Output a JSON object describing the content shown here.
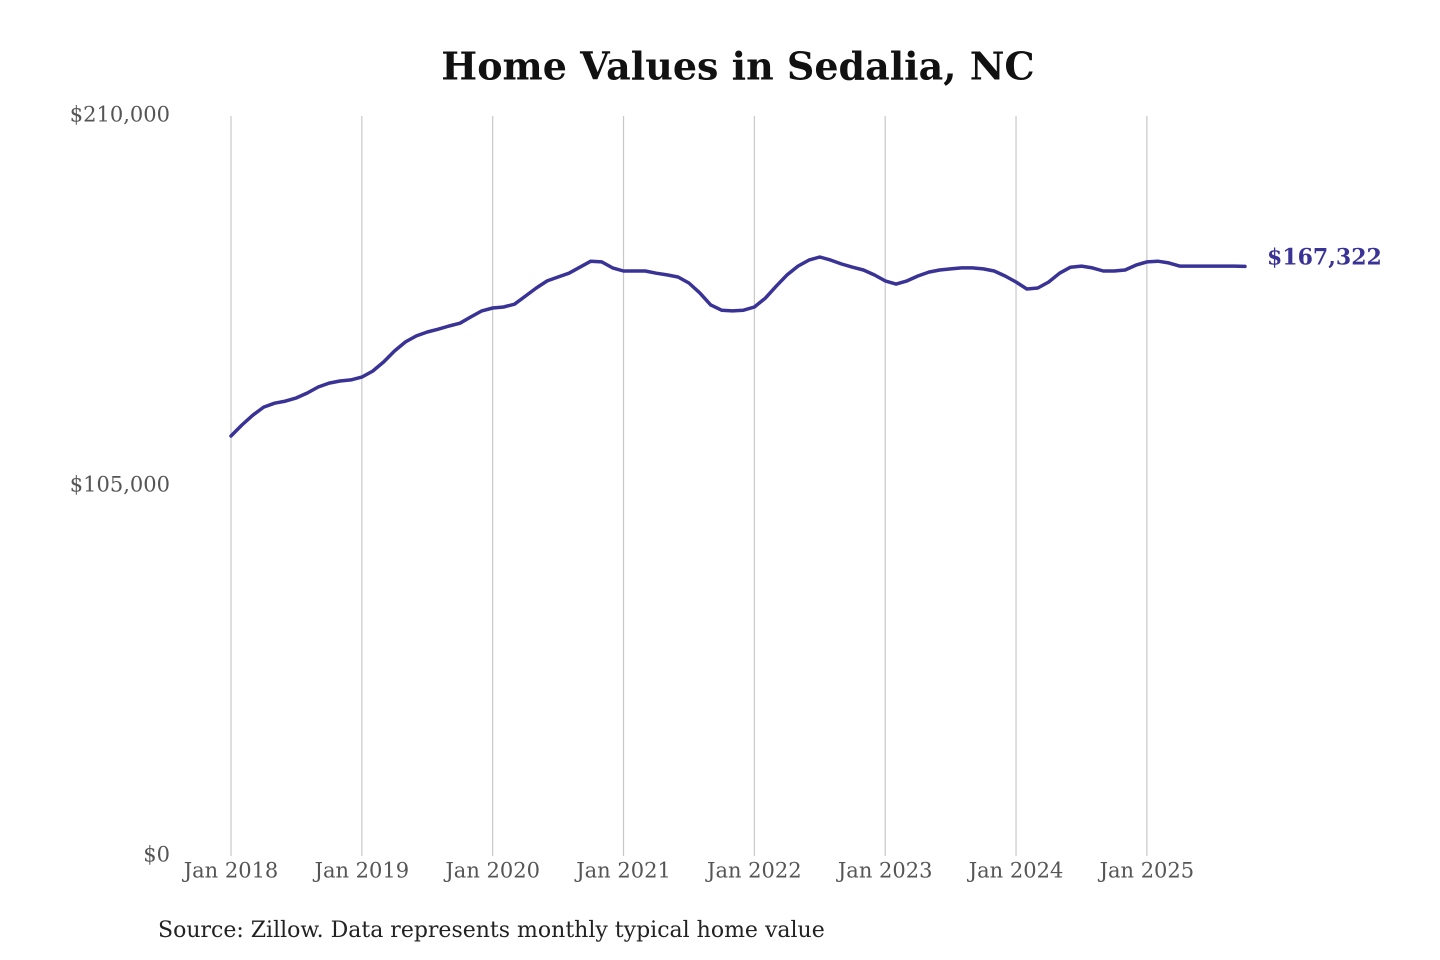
{
  "chart_data": {
    "type": "line",
    "title": "Home Values in Sedalia, NC",
    "source": "Source: Zillow. Data represents monthly typical home value",
    "x": [
      "2018-01",
      "2018-02",
      "2018-03",
      "2018-04",
      "2018-05",
      "2018-06",
      "2018-07",
      "2018-08",
      "2018-09",
      "2018-10",
      "2018-11",
      "2018-12",
      "2019-01",
      "2019-02",
      "2019-03",
      "2019-04",
      "2019-05",
      "2019-06",
      "2019-07",
      "2019-08",
      "2019-09",
      "2019-10",
      "2019-11",
      "2019-12",
      "2020-01",
      "2020-02",
      "2020-03",
      "2020-04",
      "2020-05",
      "2020-06",
      "2020-07",
      "2020-08",
      "2020-09",
      "2020-10",
      "2020-11",
      "2020-12",
      "2021-01",
      "2021-02",
      "2021-03",
      "2021-04",
      "2021-05",
      "2021-06",
      "2021-07",
      "2021-08",
      "2021-09",
      "2021-10",
      "2021-11",
      "2021-12",
      "2022-01",
      "2022-02",
      "2022-03",
      "2022-04",
      "2022-05",
      "2022-06",
      "2022-07",
      "2022-08",
      "2022-09",
      "2022-10",
      "2022-11",
      "2022-12",
      "2023-01",
      "2023-02",
      "2023-03",
      "2023-04",
      "2023-05",
      "2023-06",
      "2023-07",
      "2023-08",
      "2023-09",
      "2023-10",
      "2023-11",
      "2023-12",
      "2024-01",
      "2024-02",
      "2024-03",
      "2024-04",
      "2024-05",
      "2024-06",
      "2024-07",
      "2024-08",
      "2024-09",
      "2024-10",
      "2024-11",
      "2024-12",
      "2025-01",
      "2025-02",
      "2025-03",
      "2025-04",
      "2025-05",
      "2025-06",
      "2025-07",
      "2025-08",
      "2025-09",
      "2025-10"
    ],
    "series": [
      {
        "color": "#3a3396",
        "values": [
          119200,
          122300,
          125100,
          127400,
          128500,
          129100,
          130000,
          131400,
          133100,
          134200,
          134800,
          135100,
          135900,
          137600,
          140200,
          143300,
          145900,
          147600,
          148700,
          149500,
          150400,
          151200,
          153000,
          154700,
          155500,
          155800,
          156600,
          158900,
          161200,
          163200,
          164300,
          165400,
          167100,
          168800,
          168600,
          166900,
          166000,
          166000,
          166000,
          165400,
          164900,
          164300,
          162600,
          159800,
          156400,
          154900,
          154700,
          154900,
          155800,
          158300,
          161700,
          164900,
          167400,
          169100,
          170000,
          169100,
          168000,
          167100,
          166300,
          164900,
          163200,
          162300,
          163200,
          164600,
          165700,
          166300,
          166600,
          166900,
          166900,
          166600,
          166000,
          164600,
          162900,
          160900,
          161200,
          162900,
          165400,
          167100,
          167400,
          166900,
          166000,
          166000,
          166300,
          167700,
          168600,
          168800,
          168300,
          167400,
          167400,
          167400,
          167400,
          167400,
          167400,
          167322
        ],
        "value_labels": [
          null,
          null,
          null,
          null,
          null,
          null,
          null,
          null,
          null,
          null,
          null,
          null,
          null,
          null,
          null,
          null,
          null,
          null,
          null,
          null,
          null,
          null,
          null,
          null,
          null,
          null,
          null,
          null,
          null,
          null,
          null,
          null,
          null,
          null,
          null,
          null,
          null,
          null,
          null,
          null,
          null,
          null,
          null,
          null,
          null,
          null,
          null,
          null,
          null,
          null,
          null,
          null,
          null,
          null,
          null,
          null,
          null,
          null,
          null,
          null,
          null,
          null,
          null,
          null,
          null,
          null,
          null,
          null,
          null,
          null,
          null,
          null,
          null,
          null,
          null,
          null,
          null,
          null,
          null,
          null,
          null,
          null,
          null,
          null,
          null,
          null,
          null,
          null,
          null,
          null,
          null,
          null,
          null,
          "$167,322"
        ]
      }
    ],
    "xlim": [
      "2018-01",
      "2025-10"
    ],
    "xticks": [
      {
        "value": "2018-01",
        "label": "Jan 2018"
      },
      {
        "value": "2019-01",
        "label": "Jan 2019"
      },
      {
        "value": "2020-01",
        "label": "Jan 2020"
      },
      {
        "value": "2021-01",
        "label": "Jan 2021"
      },
      {
        "value": "2022-01",
        "label": "Jan 2022"
      },
      {
        "value": "2023-01",
        "label": "Jan 2023"
      },
      {
        "value": "2024-01",
        "label": "Jan 2024"
      },
      {
        "value": "2025-01",
        "label": "Jan 2025"
      }
    ],
    "ylim": [
      0,
      210000
    ],
    "yticks": [
      {
        "value": 0,
        "label": "$0"
      },
      {
        "value": 105000,
        "label": "$105,000"
      },
      {
        "value": 210000,
        "label": "$210,000"
      }
    ],
    "grid": "x"
  }
}
